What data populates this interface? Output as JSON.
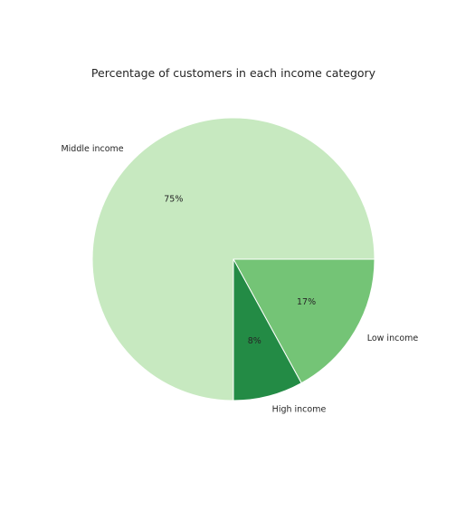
{
  "chart_data": {
    "type": "pie",
    "title": "Percentage of customers in each income category",
    "categories": [
      "Low income",
      "High income",
      "Middle income"
    ],
    "values": [
      17,
      8,
      75
    ],
    "percent_labels": [
      "17%",
      "8%",
      "75%"
    ],
    "colors": [
      "#74c476",
      "#238b45",
      "#c7e9c0"
    ],
    "start_angle_deg": 0,
    "direction": "clockwise",
    "legend": "none"
  }
}
